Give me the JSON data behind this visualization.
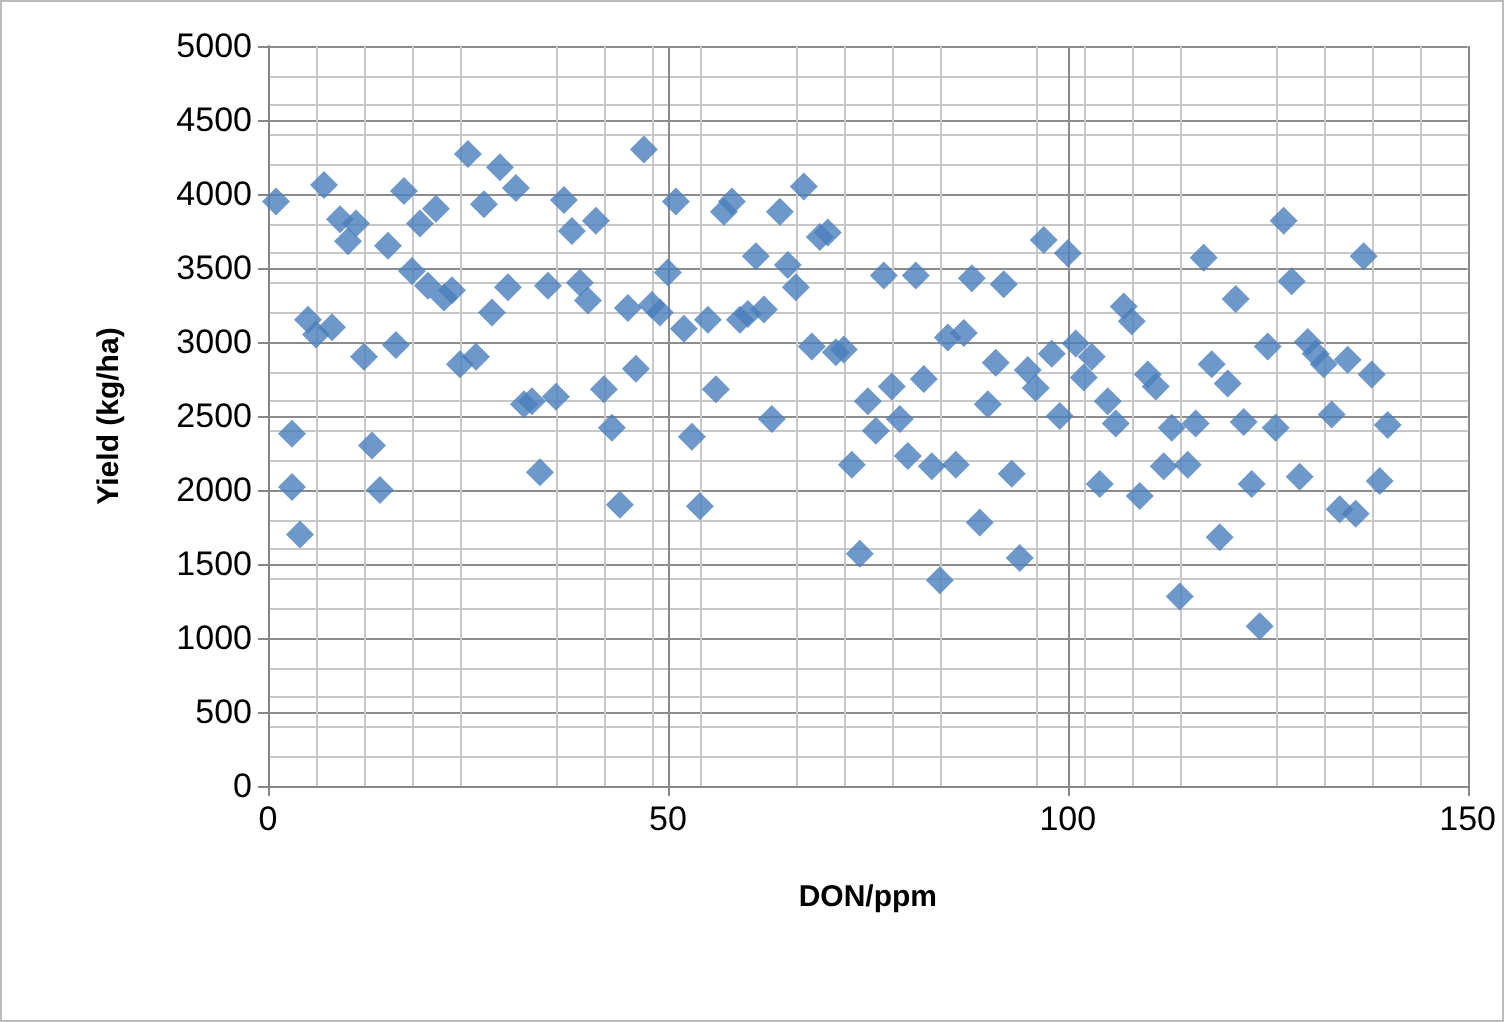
{
  "chart_data": {
    "type": "scatter",
    "xlabel": "DON/ppm",
    "ylabel": "Yield (kg/ha)",
    "marker": "diamond",
    "grid": true,
    "xlim": [
      0,
      150
    ],
    "xticks": [
      0,
      50,
      100,
      150
    ],
    "ylim": [
      0,
      5000
    ],
    "yticks": [
      0,
      500,
      1000,
      1500,
      2000,
      2500,
      3000,
      3500,
      4000,
      4500,
      5000
    ],
    "series": [
      {
        "color": "#4a7ebb",
        "x": [
          1,
          3,
          3,
          4,
          5,
          6,
          7,
          8,
          9,
          10,
          11,
          12,
          13,
          14,
          15,
          16,
          17,
          18,
          19,
          20,
          21,
          22,
          23,
          24,
          25,
          26,
          27,
          28,
          29,
          30,
          31,
          32,
          33,
          34,
          35,
          36,
          37,
          38,
          39,
          40,
          41,
          42,
          43,
          44,
          45,
          46,
          47,
          48,
          49,
          50,
          51,
          52,
          53,
          54,
          55,
          56,
          57,
          58,
          59,
          60,
          61,
          62,
          63,
          64,
          65,
          66,
          67,
          68,
          69,
          70,
          71,
          72,
          73,
          74,
          75,
          76,
          77,
          78,
          79,
          80,
          81,
          82,
          83,
          84,
          85,
          86,
          87,
          88,
          89,
          90,
          91,
          92,
          93,
          94,
          95,
          96,
          97,
          98,
          99,
          100,
          101,
          102,
          103,
          104,
          105,
          106,
          107,
          108,
          109,
          110,
          111,
          112,
          113,
          114,
          115,
          116,
          117,
          118,
          119,
          120,
          121,
          122,
          123,
          124,
          125,
          126,
          127,
          128,
          129,
          130,
          131,
          132,
          133,
          134,
          135,
          136,
          137,
          138,
          139,
          140
        ],
        "values": [
          3950,
          2380,
          2020,
          1700,
          3150,
          3050,
          4060,
          3100,
          3830,
          3680,
          3800,
          2900,
          2300,
          2000,
          3650,
          2980,
          4020,
          3480,
          3800,
          3380,
          3900,
          3300,
          3350,
          2850,
          4270,
          2900,
          3930,
          3200,
          4180,
          3370,
          4040,
          2580,
          2600,
          2120,
          3380,
          2630,
          3960,
          3750,
          3400,
          3280,
          3820,
          2680,
          2420,
          1900,
          3230,
          2820,
          4300,
          3250,
          3200,
          3470,
          3950,
          3090,
          2360,
          1890,
          3150,
          2680,
          3880,
          3950,
          3150,
          3190,
          3580,
          3220,
          2480,
          3880,
          3520,
          3370,
          4050,
          2970,
          3710,
          3740,
          2930,
          2950,
          2170,
          1570,
          2600,
          2400,
          3450,
          2700,
          2480,
          2230,
          3450,
          2750,
          2160,
          1390,
          3030,
          2170,
          3060,
          3430,
          1780,
          2580,
          2860,
          3390,
          2110,
          1540,
          2810,
          2690,
          3690,
          2920,
          2500,
          3600,
          2990,
          2760,
          2900,
          2040,
          2600,
          2450,
          3240,
          3140,
          1960,
          2780,
          2700,
          2160,
          2420,
          1280,
          2170,
          2450,
          3570,
          2850,
          1680,
          2720,
          3290,
          2460,
          2040,
          1080,
          2970,
          2420,
          3820,
          3410,
          2090,
          3000,
          2920,
          2850,
          2510,
          1870,
          2880,
          1840,
          3580,
          2780,
          2060,
          2440
        ]
      }
    ]
  }
}
